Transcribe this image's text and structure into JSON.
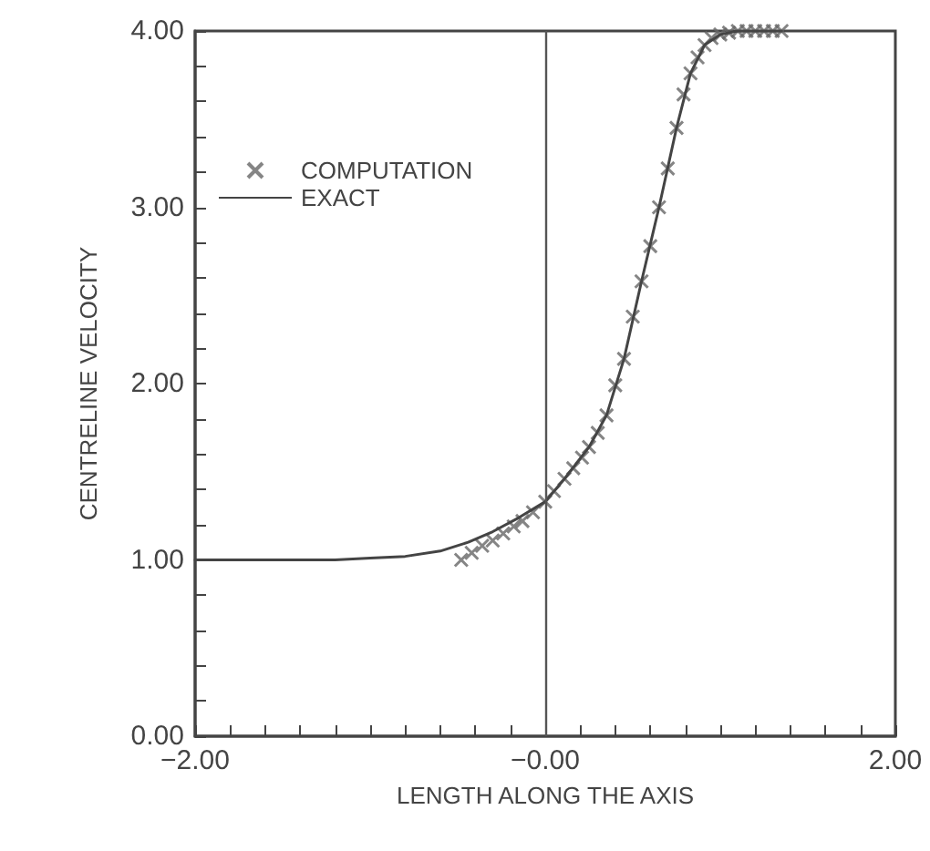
{
  "chart_data": {
    "type": "scatter",
    "xlabel": "LENGTH ALONG THE AXIS",
    "ylabel": "CENTRELINE VELOCITY",
    "xlim": [
      -2,
      2
    ],
    "ylim": [
      0,
      4
    ],
    "xticks": [
      {
        "value": -2,
        "label": "−2.00"
      },
      {
        "value": -1.8,
        "label": null
      },
      {
        "value": -1.6,
        "label": null
      },
      {
        "value": -1.4,
        "label": null
      },
      {
        "value": -1.2,
        "label": null
      },
      {
        "value": -1,
        "label": null
      },
      {
        "value": -0.8,
        "label": null
      },
      {
        "value": -0.6,
        "label": null
      },
      {
        "value": -0.4,
        "label": null
      },
      {
        "value": -0.2,
        "label": null
      },
      {
        "value": 0,
        "label": "−0.00"
      },
      {
        "value": 0.2,
        "label": null
      },
      {
        "value": 0.4,
        "label": null
      },
      {
        "value": 0.6,
        "label": null
      },
      {
        "value": 0.8,
        "label": null
      },
      {
        "value": 1,
        "label": null
      },
      {
        "value": 1.2,
        "label": null
      },
      {
        "value": 1.4,
        "label": null
      },
      {
        "value": 1.6,
        "label": null
      },
      {
        "value": 1.8,
        "label": null
      },
      {
        "value": 2,
        "label": "2.00"
      }
    ],
    "yticks": [
      {
        "value": 0,
        "label": "0.00"
      },
      {
        "value": 0.2,
        "label": null
      },
      {
        "value": 0.4,
        "label": null
      },
      {
        "value": 0.6,
        "label": null
      },
      {
        "value": 0.8,
        "label": null
      },
      {
        "value": 1,
        "label": "1.00"
      },
      {
        "value": 1.2,
        "label": null
      },
      {
        "value": 1.4,
        "label": null
      },
      {
        "value": 1.6,
        "label": null
      },
      {
        "value": 1.8,
        "label": null
      },
      {
        "value": 2,
        "label": "2.00"
      },
      {
        "value": 2.2,
        "label": null
      },
      {
        "value": 2.4,
        "label": null
      },
      {
        "value": 2.6,
        "label": null
      },
      {
        "value": 2.8,
        "label": null
      },
      {
        "value": 3,
        "label": "3.00"
      },
      {
        "value": 3.2,
        "label": null
      },
      {
        "value": 3.4,
        "label": null
      },
      {
        "value": 3.6,
        "label": null
      },
      {
        "value": 3.8,
        "label": null
      },
      {
        "value": 4,
        "label": "4.00"
      }
    ],
    "grid": false,
    "legend": "top left",
    "ref_lines": [
      {
        "axis": "x",
        "value": 0,
        "color": "#555555"
      }
    ],
    "series": [
      {
        "name": "COMPUTATION",
        "marker": "cross",
        "color": "#666666",
        "x": [
          -0.48,
          -0.42,
          -0.36,
          -0.3,
          -0.24,
          -0.18,
          -0.13,
          -0.07,
          0,
          0.05,
          0.11,
          0.16,
          0.21,
          0.25,
          0.3,
          0.35,
          0.4,
          0.45,
          0.5,
          0.55,
          0.6,
          0.65,
          0.7,
          0.75,
          0.79,
          0.83,
          0.87,
          0.91,
          0.95,
          1,
          1.05,
          1.1,
          1.15,
          1.2,
          1.25,
          1.3,
          1.35
        ],
        "values": [
          1,
          1.04,
          1.08,
          1.11,
          1.15,
          1.19,
          1.22,
          1.27,
          1.33,
          1.39,
          1.46,
          1.52,
          1.58,
          1.64,
          1.72,
          1.82,
          1.99,
          2.14,
          2.38,
          2.58,
          2.78,
          3,
          3.22,
          3.45,
          3.64,
          3.76,
          3.85,
          3.92,
          3.96,
          3.98,
          3.99,
          4,
          4,
          4,
          4,
          4,
          4
        ]
      },
      {
        "name": "EXACT",
        "type": "line",
        "marker": "none",
        "line_style": "solid",
        "color": "#444444",
        "x": [
          -2,
          -1.5,
          -1.2,
          -1,
          -0.8,
          -0.6,
          -0.44,
          -0.3,
          -0.15,
          0,
          0.11,
          0.25,
          0.35,
          0.45,
          0.55,
          0.65,
          0.75,
          0.83,
          0.91,
          1,
          1.1,
          1.35
        ],
        "values": [
          1,
          1,
          1,
          1.01,
          1.02,
          1.05,
          1.1,
          1.16,
          1.24,
          1.33,
          1.46,
          1.64,
          1.82,
          2.14,
          2.58,
          3,
          3.45,
          3.76,
          3.92,
          3.98,
          4,
          4
        ]
      }
    ]
  }
}
